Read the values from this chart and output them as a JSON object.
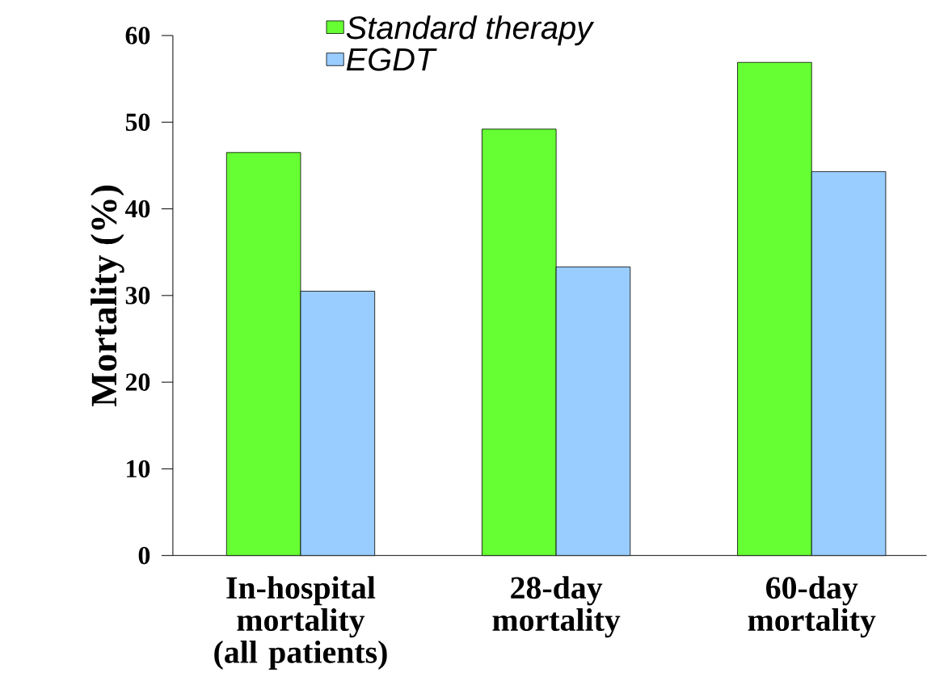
{
  "chart_data": {
    "type": "bar",
    "ylabel": "Mortality (%)",
    "categories": [
      "In-hospital mortality (all patients)",
      "28-day mortality",
      "60-day mortality"
    ],
    "series": [
      {
        "name": "Standard therapy",
        "color": "#66ff33",
        "values": [
          46.5,
          49.2,
          56.9
        ]
      },
      {
        "name": "EGDT",
        "color": "#99ccff",
        "values": [
          30.5,
          33.3,
          44.3
        ]
      }
    ],
    "ylim": [
      0,
      60
    ],
    "yticks": [
      0,
      10,
      20,
      30,
      40,
      50,
      60
    ],
    "legend": "top"
  }
}
